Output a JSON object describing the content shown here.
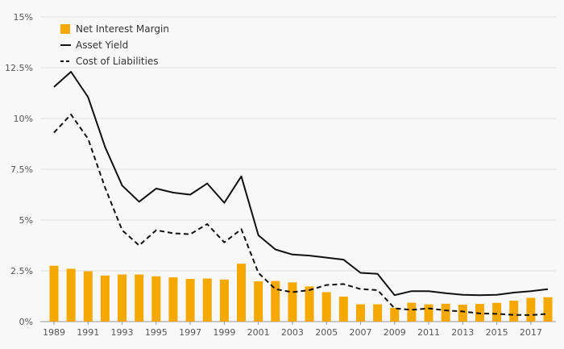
{
  "chart_data": {
    "type": "bar+line",
    "x": [
      1989,
      1990,
      1991,
      1992,
      1993,
      1994,
      1995,
      1996,
      1997,
      1998,
      1999,
      2000,
      2001,
      2002,
      2003,
      2004,
      2005,
      2006,
      2007,
      2008,
      2009,
      2010,
      2011,
      2012,
      2013,
      2014,
      2015,
      2016,
      2017,
      2018
    ],
    "x_tick_labels": [
      "1989",
      "1991",
      "1993",
      "1995",
      "1997",
      "1999",
      "2001",
      "2003",
      "2005",
      "2007",
      "2009",
      "2011",
      "2013",
      "2015",
      "2017"
    ],
    "y_tick_labels": [
      "0%",
      "2.5%",
      "5%",
      "7.5%",
      "10%",
      "12.5%",
      "15%"
    ],
    "ylim": [
      0,
      15
    ],
    "grid": "horizontal",
    "legend_position": "top-left",
    "series": [
      {
        "name": "Net Interest Margin",
        "kind": "bar",
        "color": "#f5a800",
        "values": [
          2.75,
          2.6,
          2.48,
          2.27,
          2.32,
          2.32,
          2.23,
          2.18,
          2.1,
          2.12,
          2.07,
          2.85,
          1.98,
          2.0,
          1.93,
          1.73,
          1.45,
          1.23,
          0.85,
          0.85,
          0.68,
          0.93,
          0.85,
          0.88,
          0.83,
          0.87,
          0.92,
          1.03,
          1.17,
          1.2
        ]
      },
      {
        "name": "Asset Yield",
        "kind": "line",
        "style": "solid",
        "color": "#111111",
        "values": [
          11.55,
          12.3,
          11.05,
          8.6,
          6.7,
          5.9,
          6.55,
          6.35,
          6.25,
          6.8,
          5.85,
          7.15,
          4.25,
          3.55,
          3.3,
          3.25,
          3.15,
          3.05,
          2.4,
          2.35,
          1.3,
          1.5,
          1.5,
          1.4,
          1.32,
          1.3,
          1.32,
          1.43,
          1.5,
          1.6
        ]
      },
      {
        "name": "Cost of Liabilities",
        "kind": "line",
        "style": "dashed",
        "color": "#111111",
        "values": [
          9.3,
          10.2,
          9.0,
          6.6,
          4.5,
          3.75,
          4.5,
          4.35,
          4.3,
          4.8,
          3.9,
          4.55,
          2.4,
          1.6,
          1.45,
          1.55,
          1.8,
          1.85,
          1.6,
          1.55,
          0.65,
          0.58,
          0.65,
          0.55,
          0.5,
          0.4,
          0.38,
          0.33,
          0.32,
          0.38
        ]
      }
    ]
  }
}
